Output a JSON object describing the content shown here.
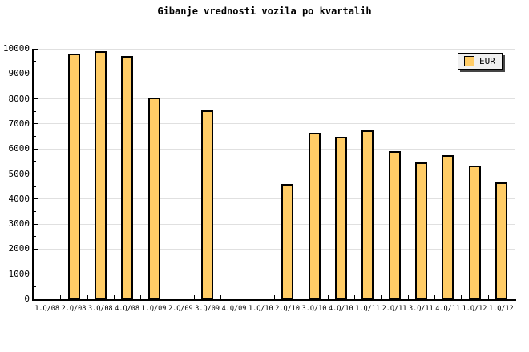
{
  "page": {
    "background": "#ffffff"
  },
  "chart_data": {
    "type": "bar",
    "title": "Gibanje vrednosti vozila po kvartalih",
    "categories": [
      "1.Q/08",
      "2.Q/08",
      "3.Q/08",
      "4.Q/08",
      "1.Q/09",
      "2.Q/09",
      "3.Q/09",
      "4.Q/09",
      "1.Q/10",
      "2.Q/10",
      "3.Q/10",
      "4.Q/10",
      "1.Q/11",
      "2.Q/11",
      "3.Q/11",
      "4.Q/11",
      "1.Q/12",
      "1.Q/12"
    ],
    "series": [
      {
        "name": "EUR",
        "color": "#ffcc66",
        "values": [
          null,
          9800,
          9900,
          9700,
          8050,
          null,
          7550,
          null,
          null,
          4600,
          6650,
          6500,
          6750,
          5900,
          5450,
          5750,
          5350,
          4650
        ]
      }
    ],
    "xlabel": "",
    "ylabel": "",
    "ylim": [
      0,
      10000
    ],
    "y_major_step": 1000,
    "y_minor_step": 500,
    "y_ticks": [
      0,
      1000,
      2000,
      3000,
      4000,
      5000,
      6000,
      7000,
      8000,
      9000,
      10000
    ],
    "grid": "horizontal-major-only",
    "legend_position": "top-right",
    "colors": {
      "axis": "#000000",
      "grid": "#e0e0e0",
      "bar_border": "#000000",
      "legend_bg": "#f0f0f0",
      "legend_shadow": "#444444",
      "text": "#000000"
    }
  }
}
